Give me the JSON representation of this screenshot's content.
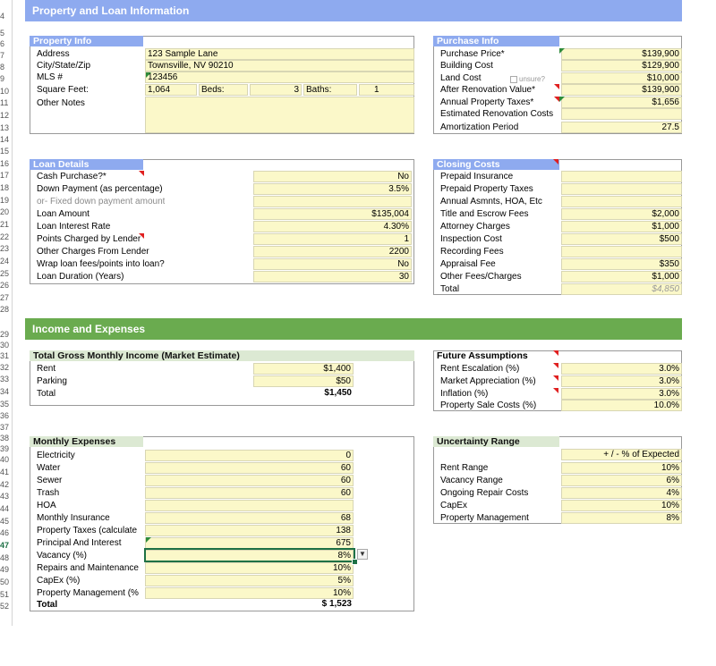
{
  "row_numbers": [
    "4",
    "5",
    "6",
    "7",
    "8",
    "9",
    "10",
    "11",
    "12",
    "13",
    "14",
    "15",
    "16",
    "17",
    "18",
    "19",
    "20",
    "21",
    "22",
    "23",
    "24",
    "25",
    "26",
    "27",
    "28",
    "29",
    "30",
    "31",
    "32",
    "33",
    "34",
    "35",
    "36",
    "37",
    "38",
    "39",
    "40",
    "41",
    "42",
    "43",
    "44",
    "45",
    "46",
    "47",
    "48",
    "49",
    "50",
    "51",
    "52"
  ],
  "bands": {
    "property_loan": "Property and Loan  Information",
    "income_expenses": "Income and Expenses"
  },
  "property_info": {
    "title": "Property Info",
    "address_label": "Address",
    "address_value": "123 Sample Lane",
    "city_label": "City/State/Zip",
    "city_value": "Townsville, NV 90210",
    "mls_label": "MLS #",
    "mls_value": "123456",
    "sqft_label": "Square Feet:",
    "sqft_value": "1,064",
    "beds_label": "Beds:",
    "beds_value": "3",
    "baths_label": "Baths:",
    "baths_value": "1",
    "notes_label": "Other Notes"
  },
  "purchase_info": {
    "title": "Purchase Info",
    "unsure_label": "unsure?",
    "rows": [
      {
        "label": "Purchase Price*",
        "value": "$139,900"
      },
      {
        "label": "Building Cost",
        "value": "$129,900"
      },
      {
        "label": "Land Cost",
        "value": "$10,000"
      },
      {
        "label": "After Renovation Value*",
        "value": "$139,900"
      },
      {
        "label": "Annual Property Taxes*",
        "value": "$1,656"
      },
      {
        "label": "Estimated Renovation Costs",
        "value": ""
      },
      {
        "label": "Amortization Period",
        "value": "27.5"
      }
    ]
  },
  "loan_details": {
    "title": "Loan Details",
    "rows": [
      {
        "label": "Cash Purchase?*",
        "value": "No",
        "gray": false
      },
      {
        "label": "Down Payment (as percentage)",
        "value": "3.5%",
        "gray": false
      },
      {
        "label": "or- Fixed down payment amount",
        "value": "",
        "gray": true
      },
      {
        "label": "Loan Amount",
        "value": "$135,004",
        "gray": false
      },
      {
        "label": "Loan Interest Rate",
        "value": "4.30%",
        "gray": false
      },
      {
        "label": "Points Charged by Lender",
        "value": "1",
        "gray": false
      },
      {
        "label": "Other Charges From Lender",
        "value": "2200",
        "gray": false
      },
      {
        "label": "Wrap loan fees/points into loan?",
        "value": "No",
        "gray": false
      },
      {
        "label": "Loan Duration (Years)",
        "value": "30",
        "gray": false
      }
    ]
  },
  "closing_costs": {
    "title": "Closing Costs",
    "rows": [
      {
        "label": "Prepaid Insurance",
        "value": ""
      },
      {
        "label": "Prepaid Property Taxes",
        "value": ""
      },
      {
        "label": "Annual Asmnts, HOA, Etc",
        "value": ""
      },
      {
        "label": "Title and Escrow Fees",
        "value": "$2,000"
      },
      {
        "label": "Attorney Charges",
        "value": "$1,000"
      },
      {
        "label": "Inspection Cost",
        "value": "$500"
      },
      {
        "label": "Recording Fees",
        "value": ""
      },
      {
        "label": "Appraisal Fee",
        "value": "$350"
      },
      {
        "label": "Other Fees/Charges",
        "value": "$1,000"
      },
      {
        "label": "Total",
        "value": "$4,850"
      }
    ]
  },
  "gross_income": {
    "title": "Total Gross Monthly Income (Market Estimate)",
    "rows": [
      {
        "label": "Rent",
        "value": "$1,400"
      },
      {
        "label": "Parking",
        "value": "$50"
      },
      {
        "label": "Total",
        "value": "$1,450"
      }
    ]
  },
  "future_assumptions": {
    "title": "Future Assumptions",
    "rows": [
      {
        "label": "Rent Escalation (%)",
        "value": "3.0%"
      },
      {
        "label": "Market Appreciation (%)",
        "value": "3.0%"
      },
      {
        "label": "Inflation (%)",
        "value": "3.0%"
      },
      {
        "label": "Property Sale Costs (%)",
        "value": "10.0%"
      }
    ]
  },
  "monthly_expenses": {
    "title": "Monthly Expenses",
    "rows": [
      {
        "label": "Electricity",
        "value": "0"
      },
      {
        "label": "Water",
        "value": "60"
      },
      {
        "label": "Sewer",
        "value": "60"
      },
      {
        "label": "Trash",
        "value": "60"
      },
      {
        "label": "HOA",
        "value": ""
      },
      {
        "label": "Monthly Insurance",
        "value": "68"
      },
      {
        "label": "Property Taxes (calculate",
        "value": "138"
      },
      {
        "label": "Principal And Interest",
        "value": "675"
      },
      {
        "label": "Vacancy (%)",
        "value": "8%"
      },
      {
        "label": "Repairs and Maintenance",
        "value": "10%"
      },
      {
        "label": "CapEx (%)",
        "value": "5%"
      },
      {
        "label": "Property Management (%",
        "value": "10%"
      },
      {
        "label": "Total",
        "value": "$ 1,523"
      }
    ]
  },
  "uncertainty": {
    "title": "Uncertainty Range",
    "header": "+ / -  % of Expected",
    "rows": [
      {
        "label": "Rent Range",
        "value": "10%"
      },
      {
        "label": "Vacancy Range",
        "value": "6%"
      },
      {
        "label": "Ongoing Repair Costs",
        "value": "4%"
      },
      {
        "label": "CapEx",
        "value": "10%"
      },
      {
        "label": "Property Management",
        "value": "8%"
      }
    ]
  },
  "dropdown_arrow": "▼",
  "colors": {
    "header_blue": "#8eaaef",
    "header_green": "#6aab4f",
    "input_yellow": "#fbf8c9",
    "selection_green": "#1e7145"
  }
}
